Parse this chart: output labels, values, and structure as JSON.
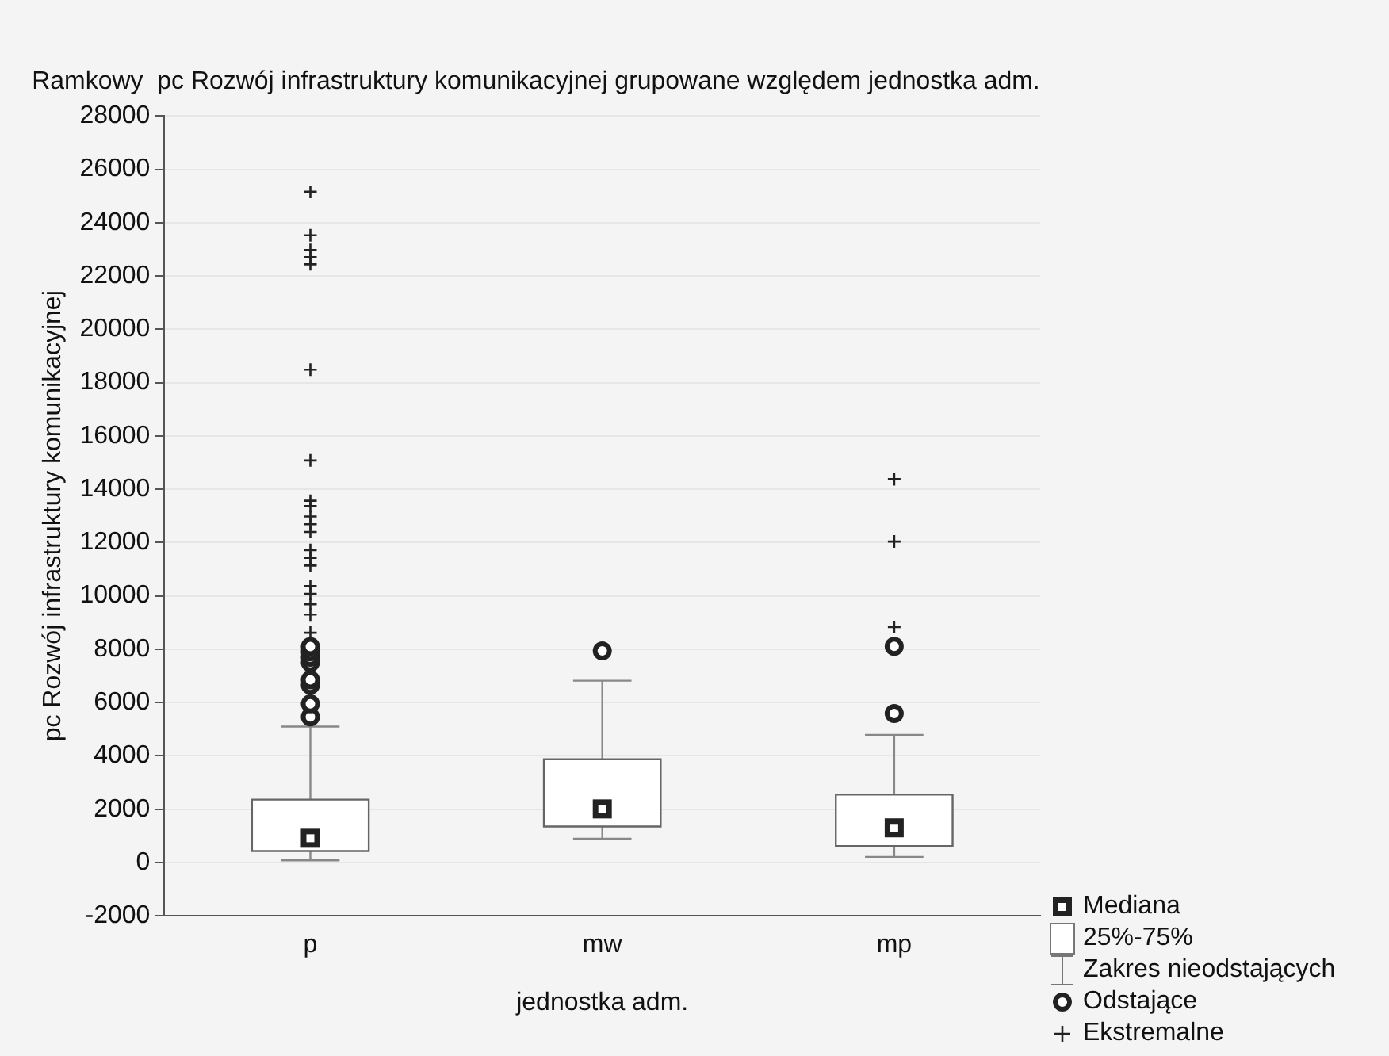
{
  "chart_data": {
    "type": "box",
    "title": "Ramkowy  pc Rozwój infrastruktury komunikacyjnej grupowane względem jednostka adm.",
    "xlabel": "jednostka adm.",
    "ylabel": "pc Rozwój infrastruktury komunikacyjnej",
    "categories": [
      "p",
      "mw",
      "mp"
    ],
    "series": [
      {
        "color": "#ffffff",
        "boxes": [
          {
            "low": 80,
            "q1": 430,
            "median": 910,
            "q3": 2360,
            "high": 5100,
            "outliers": [
              5460,
              5950,
              6650,
              6850,
              7500,
              7700,
              7900,
              8100
            ]
          },
          {
            "low": 890,
            "q1": 1350,
            "median": 2010,
            "q3": 3870,
            "high": 6820,
            "outliers": [
              7940
            ]
          },
          {
            "low": 210,
            "q1": 620,
            "median": 1300,
            "q3": 2550,
            "high": 4790,
            "outliers": [
              5590,
              8110
            ]
          }
        ]
      },
      {
        "type": "scatter",
        "name": "Ekstremalne",
        "color": "#222222",
        "marker": "cross",
        "x": [
          "p",
          "p",
          "p",
          "p",
          "p",
          "p",
          "p",
          "p",
          "p",
          "p",
          "p",
          "p",
          "p",
          "p",
          "p",
          "p",
          "p",
          "p",
          "p",
          "p",
          "mp",
          "mp",
          "mp"
        ],
        "values": [
          8620,
          9300,
          9690,
          10080,
          10370,
          11140,
          11430,
          11720,
          12400,
          12690,
          12980,
          13370,
          13570,
          15080,
          18490,
          22440,
          22710,
          22980,
          23530,
          25160,
          8830,
          12040,
          14380
        ]
      }
    ],
    "annotations": [
      "Mediana",
      "25%-75%",
      "Zakres nieodstających",
      "Odstające"
    ],
    "ylim": [
      -2000,
      28000
    ],
    "yticks": [
      -2000,
      0,
      2000,
      4000,
      6000,
      8000,
      10000,
      12000,
      14000,
      16000,
      18000,
      20000,
      22000,
      24000,
      26000,
      28000
    ],
    "grid": "y",
    "legend": "bottom right"
  }
}
